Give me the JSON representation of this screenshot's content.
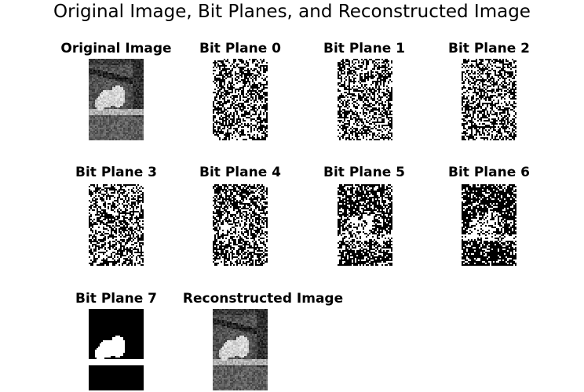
{
  "figure": {
    "title": "Original Image, Bit Planes, and Reconstructed Image"
  },
  "panels": [
    {
      "key": "original",
      "title": "Original Image",
      "image": "grayscale-photo-pigeons-on-balcony"
    },
    {
      "key": "plane0",
      "title": "Bit Plane 0",
      "image": "binary-noise-pattern"
    },
    {
      "key": "plane1",
      "title": "Bit Plane 1",
      "image": "binary-noise-pattern"
    },
    {
      "key": "plane2",
      "title": "Bit Plane 2",
      "image": "binary-noise-pattern"
    },
    {
      "key": "plane3",
      "title": "Bit Plane 3",
      "image": "binary-noise-pattern"
    },
    {
      "key": "plane4",
      "title": "Bit Plane 4",
      "image": "binary-noise-pattern-faint-structure"
    },
    {
      "key": "plane5",
      "title": "Bit Plane 5",
      "image": "binary-pattern-partial-structure"
    },
    {
      "key": "plane6",
      "title": "Bit Plane 6",
      "image": "binary-pattern-visible-structure"
    },
    {
      "key": "plane7",
      "title": "Bit Plane 7",
      "image": "binary-silhouette-pigeons"
    },
    {
      "key": "reconstructed",
      "title": "Reconstructed Image",
      "image": "grayscale-photo-pigeons-on-balcony"
    }
  ]
}
